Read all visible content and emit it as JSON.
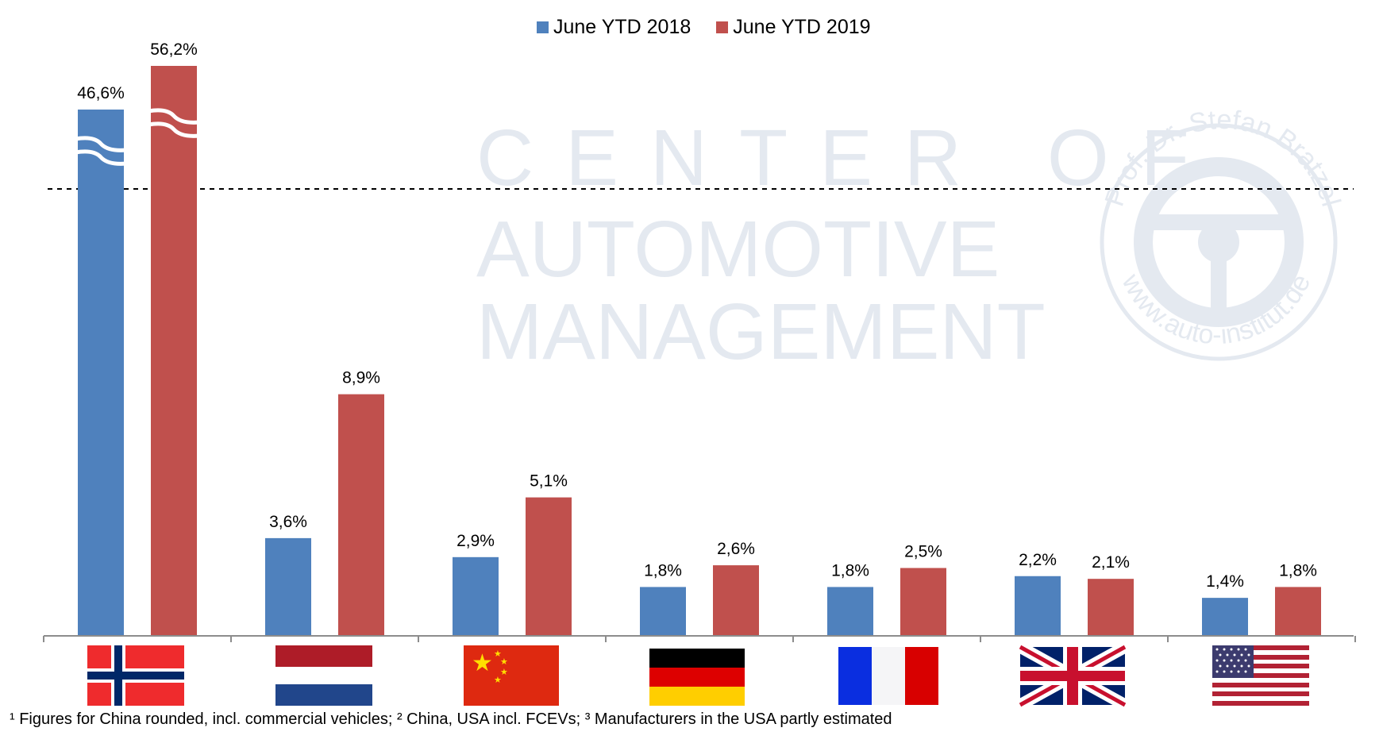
{
  "chart_data": {
    "type": "bar",
    "title": "",
    "xlabel": "",
    "ylabel": "",
    "axis_break": true,
    "categories": [
      "Norway",
      "Netherlands",
      "China",
      "Germany",
      "France",
      "United Kingdom",
      "USA"
    ],
    "series": [
      {
        "name": "June YTD 2018",
        "color": "#4f81bd",
        "values": [
          46.6,
          3.6,
          2.9,
          1.8,
          1.8,
          2.2,
          1.4
        ],
        "labels": [
          "46,6%",
          "3,6%",
          "2,9%",
          "1,8%",
          "1,8%",
          "2,2%",
          "1,4%"
        ]
      },
      {
        "name": "June YTD 2019",
        "color": "#c0504d",
        "values": [
          56.2,
          8.9,
          5.1,
          2.6,
          2.5,
          2.1,
          1.8
        ],
        "labels": [
          "56,2%",
          "8,9%",
          "5,1%",
          "2,6%",
          "2,5%",
          "2,1%",
          "1,8%"
        ]
      }
    ],
    "legend": "top-center",
    "grid": false
  },
  "legend": {
    "items": [
      {
        "label": "June YTD 2018",
        "color": "#4f81bd"
      },
      {
        "label": "June YTD 2019",
        "color": "#c0504d"
      }
    ]
  },
  "watermark": {
    "line1": "CENTER OF",
    "line2": "AUTOMOTIVE",
    "line3": "MANAGEMENT",
    "seal_top": "Prof. Dr. Stefan Bratzel",
    "seal_bottom": "www.auto-institut.de"
  },
  "footnote": "¹ Figures for China rounded, incl. commercial vehicles; ² China, USA incl. FCEVs; ³ Manufacturers in the USA partly estimated"
}
